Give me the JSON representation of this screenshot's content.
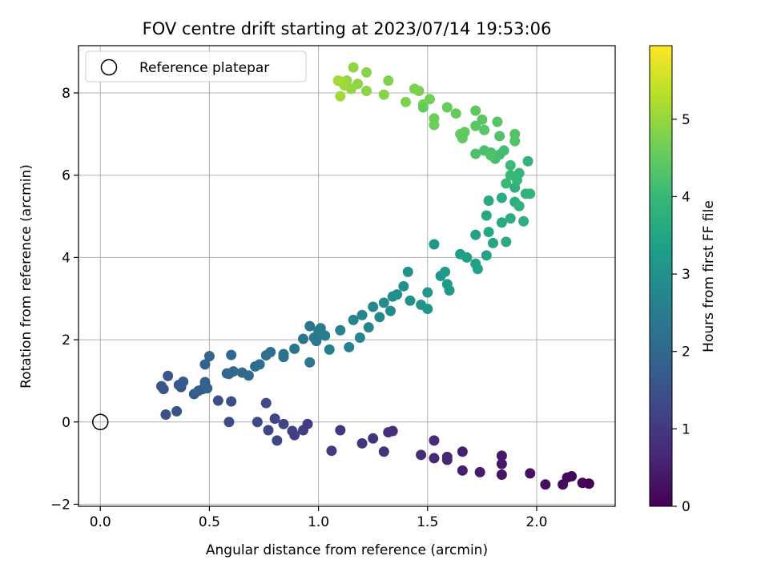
{
  "chart_data": {
    "type": "scatter",
    "title": "FOV centre drift starting at 2023/07/14 19:53:06",
    "xlabel": "Angular distance from reference (arcmin)",
    "ylabel": "Rotation from reference (arcmin)",
    "xlim": [
      -0.1,
      2.36
    ],
    "ylim": [
      -2.05,
      9.15
    ],
    "x_ticks": [
      0.0,
      0.5,
      1.0,
      1.5,
      2.0
    ],
    "x_tick_labels": [
      "0.0",
      "0.5",
      "1.0",
      "1.5",
      "2.0"
    ],
    "y_ticks": [
      -2,
      0,
      2,
      4,
      6,
      8
    ],
    "y_tick_labels": [
      "−2",
      "0",
      "2",
      "4",
      "6",
      "8"
    ],
    "grid": true,
    "legend": {
      "position": "top-left",
      "entries": [
        "Reference platepar"
      ]
    },
    "reference_point": {
      "x": 0.0,
      "y": 0.0,
      "label": "Reference platepar"
    },
    "colorbar": {
      "label": "Hours from first FF file",
      "range": [
        0,
        5.95
      ],
      "ticks": [
        0,
        1,
        2,
        3,
        4,
        5
      ],
      "tick_labels": [
        "0",
        "1",
        "2",
        "3",
        "4",
        "5"
      ],
      "colormap": "viridis"
    },
    "colormap_stops": [
      "#440154",
      "#482878",
      "#3e4989",
      "#31688e",
      "#26828e",
      "#1f9e89",
      "#35b779",
      "#6ece58",
      "#b5de2b",
      "#fde725"
    ],
    "points": [
      [
        2.24,
        -1.5,
        0.0
      ],
      [
        2.21,
        -1.48,
        0.05
      ],
      [
        2.16,
        -1.32,
        0.1
      ],
      [
        2.14,
        -1.35,
        0.14
      ],
      [
        2.12,
        -1.52,
        0.18
      ],
      [
        2.04,
        -1.52,
        0.22
      ],
      [
        1.97,
        -1.25,
        0.27
      ],
      [
        1.84,
        -1.28,
        0.32
      ],
      [
        1.84,
        -1.02,
        0.36
      ],
      [
        1.84,
        -0.82,
        0.4
      ],
      [
        1.74,
        -1.22,
        0.45
      ],
      [
        1.66,
        -1.18,
        0.5
      ],
      [
        1.66,
        -0.72,
        0.54
      ],
      [
        1.59,
        -0.85,
        0.58
      ],
      [
        1.59,
        -0.92,
        0.62
      ],
      [
        1.53,
        -0.88,
        0.66
      ],
      [
        1.53,
        -0.45,
        0.7
      ],
      [
        1.47,
        -0.8,
        0.74
      ],
      [
        1.34,
        -0.22,
        0.78
      ],
      [
        1.32,
        -0.25,
        0.82
      ],
      [
        1.3,
        -0.72,
        0.86
      ],
      [
        1.25,
        -0.4,
        0.9
      ],
      [
        1.2,
        -0.52,
        0.94
      ],
      [
        1.1,
        -0.2,
        0.98
      ],
      [
        1.06,
        -0.7,
        1.02
      ],
      [
        0.95,
        -0.05,
        1.06
      ],
      [
        0.93,
        -0.2,
        1.1
      ],
      [
        0.89,
        -0.32,
        1.14
      ],
      [
        0.88,
        -0.22,
        1.17
      ],
      [
        0.84,
        -0.05,
        1.2
      ],
      [
        0.81,
        -0.45,
        1.23
      ],
      [
        0.8,
        0.08,
        1.26
      ],
      [
        0.77,
        -0.2,
        1.29
      ],
      [
        0.76,
        0.46,
        1.32
      ],
      [
        0.72,
        0.0,
        1.35
      ],
      [
        0.59,
        0.0,
        1.38
      ],
      [
        0.6,
        0.5,
        1.41
      ],
      [
        0.54,
        0.52,
        1.44
      ],
      [
        0.37,
        0.85,
        1.47
      ],
      [
        0.3,
        0.18,
        1.5
      ],
      [
        0.35,
        0.26,
        1.53
      ],
      [
        0.28,
        0.87,
        1.56
      ],
      [
        0.29,
        0.8,
        1.59
      ],
      [
        0.31,
        1.12,
        1.62
      ],
      [
        0.36,
        0.9,
        1.65
      ],
      [
        0.38,
        0.98,
        1.68
      ],
      [
        0.43,
        0.68,
        1.71
      ],
      [
        0.45,
        0.76,
        1.74
      ],
      [
        0.47,
        0.8,
        1.77
      ],
      [
        0.48,
        0.97,
        1.8
      ],
      [
        0.49,
        0.82,
        1.83
      ],
      [
        0.48,
        1.4,
        1.86
      ],
      [
        0.5,
        1.6,
        1.89
      ],
      [
        0.58,
        1.18,
        1.92
      ],
      [
        0.59,
        1.17,
        1.95
      ],
      [
        0.61,
        1.23,
        1.98
      ],
      [
        0.6,
        1.63,
        2.01
      ],
      [
        0.65,
        1.2,
        2.04
      ],
      [
        0.68,
        1.13,
        2.07
      ],
      [
        0.71,
        1.35,
        2.1
      ],
      [
        0.73,
        1.4,
        2.13
      ],
      [
        0.76,
        1.62,
        2.16
      ],
      [
        0.78,
        1.7,
        2.19
      ],
      [
        0.84,
        1.58,
        2.22
      ],
      [
        0.84,
        1.65,
        2.25
      ],
      [
        0.89,
        1.78,
        2.28
      ],
      [
        0.93,
        2.02,
        2.31
      ],
      [
        0.96,
        2.33,
        2.34
      ],
      [
        0.96,
        1.45,
        2.37
      ],
      [
        0.98,
        2.05,
        2.4
      ],
      [
        0.99,
        1.97,
        2.43
      ],
      [
        1.0,
        2.22,
        2.46
      ],
      [
        1.01,
        2.28,
        2.49
      ],
      [
        1.02,
        2.12,
        2.52
      ],
      [
        1.03,
        2.1,
        2.55
      ],
      [
        1.05,
        1.76,
        2.58
      ],
      [
        1.1,
        2.23,
        2.61
      ],
      [
        1.14,
        1.82,
        2.64
      ],
      [
        1.16,
        2.48,
        2.67
      ],
      [
        1.19,
        2.05,
        2.7
      ],
      [
        1.2,
        2.6,
        2.73
      ],
      [
        1.23,
        2.3,
        2.76
      ],
      [
        1.25,
        2.8,
        2.79
      ],
      [
        1.28,
        2.55,
        2.82
      ],
      [
        1.3,
        2.9,
        2.85
      ],
      [
        1.33,
        2.7,
        2.88
      ],
      [
        1.34,
        3.05,
        2.91
      ],
      [
        1.36,
        3.1,
        2.94
      ],
      [
        1.39,
        3.3,
        2.97
      ],
      [
        1.42,
        2.95,
        3.0
      ],
      [
        1.41,
        3.65,
        3.03
      ],
      [
        1.47,
        2.85,
        3.06
      ],
      [
        1.5,
        2.75,
        3.09
      ],
      [
        1.5,
        3.15,
        3.12
      ],
      [
        1.53,
        4.32,
        3.15
      ],
      [
        1.56,
        3.55,
        3.18
      ],
      [
        1.58,
        3.65,
        3.21
      ],
      [
        1.6,
        3.2,
        3.24
      ],
      [
        1.59,
        3.35,
        3.27
      ],
      [
        1.65,
        4.08,
        3.3
      ],
      [
        1.68,
        4.0,
        3.33
      ],
      [
        1.72,
        3.85,
        3.36
      ],
      [
        1.73,
        3.72,
        3.39
      ],
      [
        1.72,
        4.55,
        3.42
      ],
      [
        1.77,
        4.05,
        3.45
      ],
      [
        1.8,
        4.35,
        3.48
      ],
      [
        1.78,
        4.62,
        3.51
      ],
      [
        1.77,
        5.02,
        3.54
      ],
      [
        1.78,
        5.38,
        3.57
      ],
      [
        1.84,
        4.85,
        3.6
      ],
      [
        1.86,
        4.38,
        3.63
      ],
      [
        1.84,
        5.45,
        3.66
      ],
      [
        1.88,
        4.95,
        3.69
      ],
      [
        1.9,
        5.35,
        3.72
      ],
      [
        1.94,
        4.88,
        3.75
      ],
      [
        1.9,
        5.7,
        3.78
      ],
      [
        1.92,
        5.25,
        3.81
      ],
      [
        1.95,
        5.55,
        3.84
      ],
      [
        1.97,
        5.55,
        3.87
      ],
      [
        1.96,
        6.34,
        3.9
      ],
      [
        1.92,
        6.05,
        3.93
      ],
      [
        1.91,
        5.88,
        3.96
      ],
      [
        1.88,
        6.0,
        3.99
      ],
      [
        1.86,
        5.8,
        4.02
      ],
      [
        1.88,
        6.24,
        4.05
      ],
      [
        1.83,
        6.5,
        4.08
      ],
      [
        1.85,
        6.6,
        4.11
      ],
      [
        1.81,
        6.4,
        4.14
      ],
      [
        1.79,
        6.55,
        4.17
      ],
      [
        1.76,
        6.6,
        4.2
      ],
      [
        1.72,
        6.52,
        4.23
      ],
      [
        1.79,
        6.48,
        4.26
      ],
      [
        1.83,
        6.95,
        4.29
      ],
      [
        1.9,
        6.83,
        4.32
      ],
      [
        1.82,
        7.3,
        4.35
      ],
      [
        1.76,
        7.1,
        4.38
      ],
      [
        1.75,
        7.35,
        4.41
      ],
      [
        1.72,
        7.57,
        4.44
      ],
      [
        1.67,
        7.05,
        4.47
      ],
      [
        1.65,
        7.0,
        4.5
      ],
      [
        1.63,
        7.5,
        4.53
      ],
      [
        1.59,
        7.65,
        4.56
      ],
      [
        1.53,
        7.38,
        4.59
      ],
      [
        1.53,
        7.22,
        4.62
      ],
      [
        1.51,
        7.85,
        4.65
      ],
      [
        1.48,
        7.72,
        4.68
      ],
      [
        1.46,
        8.05,
        4.71
      ],
      [
        1.44,
        8.1,
        4.74
      ],
      [
        1.4,
        7.78,
        4.77
      ],
      [
        1.32,
        8.3,
        4.8
      ],
      [
        1.3,
        7.96,
        4.83
      ],
      [
        1.22,
        8.5,
        4.86
      ],
      [
        1.22,
        8.05,
        4.89
      ],
      [
        1.18,
        8.22,
        4.92
      ],
      [
        1.16,
        8.62,
        4.95
      ],
      [
        1.15,
        8.1,
        4.98
      ],
      [
        1.13,
        8.3,
        5.01
      ],
      [
        1.12,
        8.18,
        5.04
      ],
      [
        1.1,
        8.28,
        5.07
      ],
      [
        1.1,
        7.92,
        5.1
      ],
      [
        1.09,
        8.3,
        5.13
      ],
      [
        1.48,
        7.65,
        4.5
      ],
      [
        1.72,
        7.2,
        4.4
      ],
      [
        1.66,
        6.9,
        4.45
      ],
      [
        1.9,
        7.0,
        4.3
      ]
    ]
  }
}
